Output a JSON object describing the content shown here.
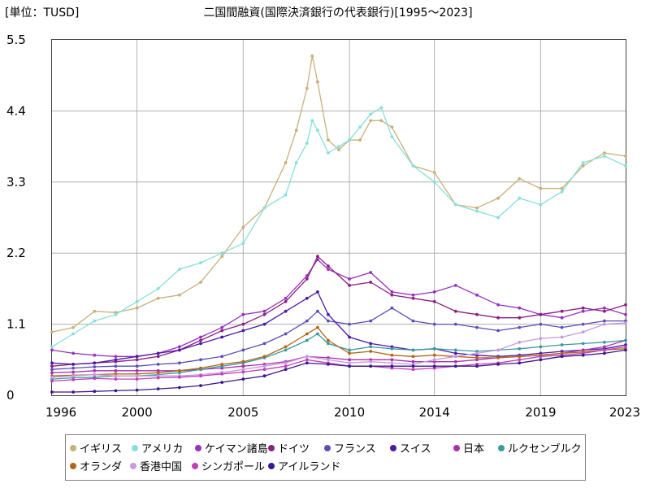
{
  "chart_data": {
    "type": "line",
    "title": "二国間融資(国際決済銀行の代表銀行)[1995～2023]",
    "unit_label": "[単位：TUSD]",
    "xlabel": "",
    "ylabel": "",
    "xlim": [
      1996,
      2023
    ],
    "ylim": [
      0,
      5.5
    ],
    "x_ticks": [
      "1996",
      "2000",
      "2005",
      "2010",
      "2014",
      "2019",
      "2023"
    ],
    "y_ticks": [
      "0",
      "1.1",
      "2.2",
      "3.3",
      "4.4",
      "5.5"
    ],
    "grid": true,
    "legend_position": "bottom",
    "series": [
      {
        "name": "イギリス",
        "color": "#c8b07a",
        "x": [
          1996,
          1997,
          1998,
          1999,
          2000,
          2001,
          2002,
          2003,
          2004,
          2005,
          2006,
          2007,
          2007.5,
          2008,
          2008.25,
          2008.5,
          2009,
          2009.5,
          2010,
          2010.5,
          2011,
          2011.5,
          2012,
          2013,
          2014,
          2015,
          2016,
          2017,
          2018,
          2019,
          2020,
          2021,
          2022,
          2023
        ],
        "y": [
          0.98,
          1.05,
          1.3,
          1.28,
          1.35,
          1.5,
          1.55,
          1.75,
          2.15,
          2.6,
          2.9,
          3.6,
          4.1,
          4.75,
          5.25,
          4.85,
          3.95,
          3.8,
          3.95,
          3.95,
          4.25,
          4.25,
          4.15,
          3.55,
          3.45,
          2.95,
          2.9,
          3.05,
          3.35,
          3.2,
          3.2,
          3.55,
          3.75,
          3.7
        ]
      },
      {
        "name": "アメリカ",
        "color": "#86e0d8",
        "x": [
          1996,
          1997,
          1998,
          1999,
          2000,
          2001,
          2002,
          2003,
          2004,
          2005,
          2006,
          2007,
          2007.5,
          2008,
          2008.25,
          2008.5,
          2009,
          2009.5,
          2010,
          2010.5,
          2011,
          2011.5,
          2012,
          2013,
          2014,
          2015,
          2016,
          2017,
          2018,
          2019,
          2020,
          2021,
          2022,
          2023
        ],
        "y": [
          0.75,
          0.95,
          1.15,
          1.25,
          1.45,
          1.65,
          1.95,
          2.05,
          2.2,
          2.35,
          2.9,
          3.1,
          3.6,
          3.9,
          4.25,
          4.1,
          3.75,
          3.85,
          3.95,
          4.15,
          4.35,
          4.45,
          4.0,
          3.55,
          3.3,
          2.95,
          2.85,
          2.75,
          3.05,
          2.95,
          3.15,
          3.6,
          3.7,
          3.55
        ]
      },
      {
        "name": "ケイマン諸島",
        "color": "#9830c0",
        "x": [
          1996,
          1997,
          1998,
          1999,
          2000,
          2001,
          2002,
          2003,
          2004,
          2005,
          2006,
          2007,
          2008,
          2008.5,
          2009,
          2010,
          2011,
          2012,
          2013,
          2014,
          2015,
          2016,
          2017,
          2018,
          2019,
          2020,
          2021,
          2022,
          2023
        ],
        "y": [
          0.7,
          0.65,
          0.62,
          0.6,
          0.6,
          0.65,
          0.75,
          0.9,
          1.05,
          1.25,
          1.3,
          1.5,
          1.85,
          2.1,
          1.95,
          1.8,
          1.9,
          1.6,
          1.55,
          1.6,
          1.7,
          1.55,
          1.4,
          1.35,
          1.25,
          1.2,
          1.3,
          1.35,
          1.25
        ]
      },
      {
        "name": "ドイツ",
        "color": "#8a2080",
        "x": [
          1996,
          1997,
          1998,
          1999,
          2000,
          2001,
          2002,
          2003,
          2004,
          2005,
          2006,
          2007,
          2008,
          2008.5,
          2009,
          2010,
          2011,
          2012,
          2013,
          2014,
          2015,
          2016,
          2017,
          2018,
          2019,
          2020,
          2021,
          2022,
          2023
        ],
        "y": [
          0.45,
          0.48,
          0.5,
          0.52,
          0.55,
          0.6,
          0.7,
          0.85,
          1.0,
          1.1,
          1.25,
          1.45,
          1.8,
          2.15,
          2.0,
          1.7,
          1.75,
          1.55,
          1.5,
          1.45,
          1.3,
          1.25,
          1.2,
          1.2,
          1.25,
          1.3,
          1.35,
          1.3,
          1.4
        ]
      },
      {
        "name": "フランス",
        "color": "#5a50b8",
        "x": [
          1996,
          1997,
          1998,
          1999,
          2000,
          2001,
          2002,
          2003,
          2004,
          2005,
          2006,
          2007,
          2008,
          2008.5,
          2009,
          2010,
          2011,
          2012,
          2013,
          2014,
          2015,
          2016,
          2017,
          2018,
          2019,
          2020,
          2021,
          2022,
          2023
        ],
        "y": [
          0.4,
          0.42,
          0.44,
          0.45,
          0.45,
          0.48,
          0.5,
          0.55,
          0.6,
          0.7,
          0.8,
          0.95,
          1.15,
          1.3,
          1.15,
          1.1,
          1.15,
          1.35,
          1.15,
          1.1,
          1.1,
          1.05,
          1.0,
          1.05,
          1.1,
          1.05,
          1.1,
          1.15,
          1.15
        ]
      },
      {
        "name": "スイス",
        "color": "#4a1aa8",
        "x": [
          1996,
          1997,
          1998,
          1999,
          2000,
          2001,
          2002,
          2003,
          2004,
          2005,
          2006,
          2007,
          2008,
          2008.5,
          2009,
          2010,
          2011,
          2012,
          2013,
          2014,
          2015,
          2016,
          2017,
          2018,
          2019,
          2020,
          2021,
          2022,
          2023
        ],
        "y": [
          0.5,
          0.48,
          0.5,
          0.55,
          0.6,
          0.65,
          0.7,
          0.8,
          0.9,
          1.0,
          1.1,
          1.3,
          1.5,
          1.6,
          1.25,
          0.9,
          0.8,
          0.75,
          0.7,
          0.72,
          0.65,
          0.62,
          0.6,
          0.62,
          0.65,
          0.68,
          0.7,
          0.72,
          0.78
        ]
      },
      {
        "name": "日本",
        "color": "#a830b0",
        "x": [
          1996,
          1997,
          1998,
          1999,
          2000,
          2001,
          2002,
          2003,
          2004,
          2005,
          2006,
          2007,
          2008,
          2009,
          2010,
          2011,
          2012,
          2013,
          2014,
          2015,
          2016,
          2017,
          2018,
          2019,
          2020,
          2021,
          2022,
          2023
        ],
        "y": [
          0.35,
          0.36,
          0.38,
          0.38,
          0.38,
          0.38,
          0.38,
          0.4,
          0.42,
          0.45,
          0.48,
          0.52,
          0.6,
          0.58,
          0.55,
          0.55,
          0.55,
          0.52,
          0.52,
          0.52,
          0.55,
          0.58,
          0.6,
          0.62,
          0.65,
          0.7,
          0.75,
          0.85
        ]
      },
      {
        "name": "ルクセンブルク",
        "color": "#3a9aa0",
        "x": [
          1996,
          1997,
          1998,
          1999,
          2000,
          2001,
          2002,
          2003,
          2004,
          2005,
          2006,
          2007,
          2008,
          2008.5,
          2009,
          2010,
          2011,
          2012,
          2013,
          2014,
          2015,
          2016,
          2017,
          2018,
          2019,
          2020,
          2021,
          2022,
          2023
        ],
        "y": [
          0.25,
          0.27,
          0.28,
          0.3,
          0.3,
          0.32,
          0.35,
          0.4,
          0.45,
          0.5,
          0.58,
          0.7,
          0.85,
          0.95,
          0.8,
          0.7,
          0.75,
          0.72,
          0.7,
          0.72,
          0.7,
          0.68,
          0.7,
          0.72,
          0.75,
          0.78,
          0.8,
          0.82,
          0.85
        ]
      },
      {
        "name": "オランダ",
        "color": "#b06818",
        "x": [
          1996,
          1997,
          1998,
          1999,
          2000,
          2001,
          2002,
          2003,
          2004,
          2005,
          2006,
          2007,
          2008,
          2008.5,
          2009,
          2010,
          2011,
          2012,
          2013,
          2014,
          2015,
          2016,
          2017,
          2018,
          2019,
          2020,
          2021,
          2022,
          2023
        ],
        "y": [
          0.3,
          0.31,
          0.32,
          0.33,
          0.33,
          0.35,
          0.38,
          0.42,
          0.48,
          0.52,
          0.6,
          0.75,
          0.95,
          1.05,
          0.85,
          0.65,
          0.68,
          0.62,
          0.6,
          0.62,
          0.6,
          0.58,
          0.58,
          0.6,
          0.62,
          0.65,
          0.67,
          0.7,
          0.72
        ]
      },
      {
        "name": "香港中国",
        "color": "#c89ae0",
        "x": [
          1996,
          1997,
          1998,
          1999,
          2000,
          2001,
          2002,
          2003,
          2004,
          2005,
          2006,
          2007,
          2008,
          2009,
          2010,
          2011,
          2012,
          2013,
          2014,
          2015,
          2016,
          2017,
          2018,
          2019,
          2020,
          2021,
          2022,
          2023
        ],
        "y": [
          0.28,
          0.3,
          0.32,
          0.3,
          0.3,
          0.3,
          0.3,
          0.32,
          0.35,
          0.4,
          0.45,
          0.5,
          0.6,
          0.55,
          0.5,
          0.52,
          0.5,
          0.48,
          0.55,
          0.6,
          0.65,
          0.7,
          0.82,
          0.88,
          0.9,
          0.98,
          1.1,
          1.12
        ]
      },
      {
        "name": "シンガポール",
        "color": "#c040b8",
        "x": [
          1996,
          1997,
          1998,
          1999,
          2000,
          2001,
          2002,
          2003,
          2004,
          2005,
          2006,
          2007,
          2008,
          2009,
          2010,
          2011,
          2012,
          2013,
          2014,
          2015,
          2016,
          2017,
          2018,
          2019,
          2020,
          2021,
          2022,
          2023
        ],
        "y": [
          0.22,
          0.24,
          0.26,
          0.25,
          0.25,
          0.27,
          0.28,
          0.3,
          0.33,
          0.36,
          0.4,
          0.45,
          0.55,
          0.5,
          0.45,
          0.45,
          0.42,
          0.4,
          0.42,
          0.45,
          0.48,
          0.5,
          0.55,
          0.6,
          0.62,
          0.65,
          0.7,
          0.75
        ]
      },
      {
        "name": "アイルランド",
        "color": "#3a1890",
        "x": [
          1996,
          1997,
          1998,
          1999,
          2000,
          2001,
          2002,
          2003,
          2004,
          2005,
          2006,
          2007,
          2008,
          2009,
          2010,
          2011,
          2012,
          2013,
          2014,
          2015,
          2016,
          2017,
          2018,
          2019,
          2020,
          2021,
          2022,
          2023
        ],
        "y": [
          0.05,
          0.05,
          0.06,
          0.07,
          0.08,
          0.1,
          0.12,
          0.15,
          0.2,
          0.25,
          0.3,
          0.4,
          0.5,
          0.48,
          0.45,
          0.45,
          0.45,
          0.45,
          0.45,
          0.45,
          0.45,
          0.48,
          0.5,
          0.55,
          0.6,
          0.62,
          0.65,
          0.7
        ]
      }
    ]
  }
}
